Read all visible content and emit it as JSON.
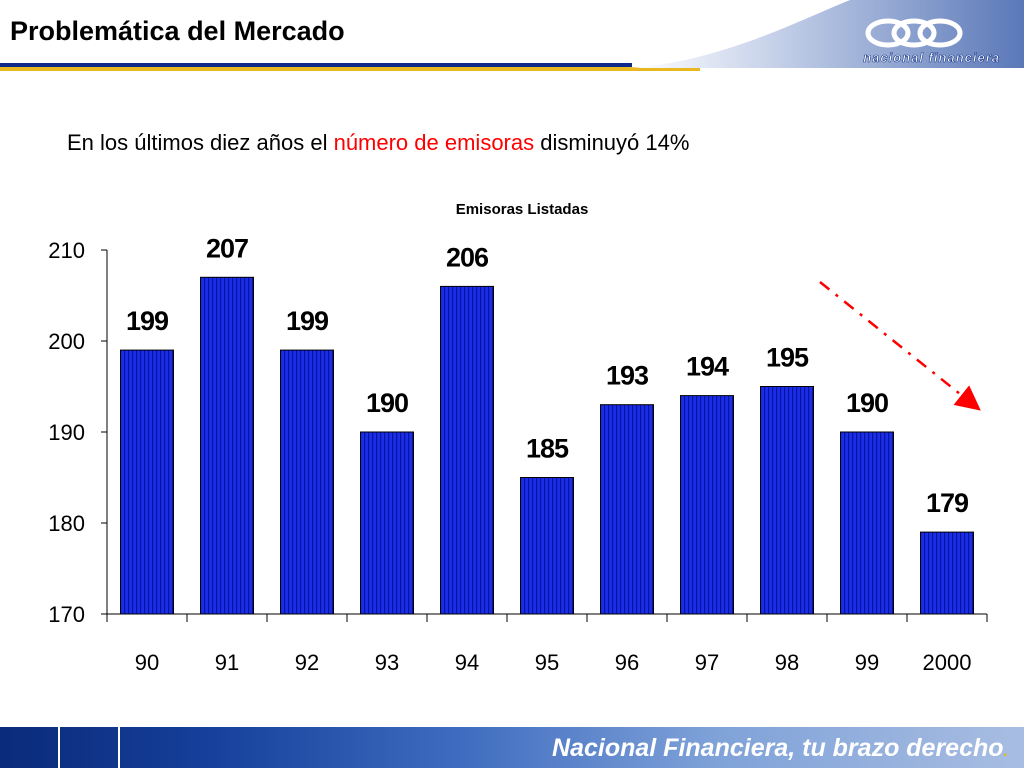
{
  "header": {
    "title": "Problemática del Mercado",
    "logo_text": "nacional financiera"
  },
  "subtitle": {
    "part1": "En los últimos diez años el ",
    "highlight": "número de emisoras",
    "part2": " disminuyó 14%"
  },
  "chart_data": {
    "type": "bar",
    "title": "Emisoras Listadas",
    "categories": [
      "90",
      "91",
      "92",
      "93",
      "94",
      "95",
      "96",
      "97",
      "98",
      "99",
      "2000"
    ],
    "values": [
      199,
      207,
      199,
      190,
      206,
      185,
      193,
      194,
      195,
      190,
      179
    ],
    "xlabel": "",
    "ylabel": "",
    "ylim": [
      170,
      210
    ],
    "yticks": [
      170,
      180,
      190,
      200,
      210
    ],
    "grid": false,
    "bar_color": "#1a2ee8",
    "trend_arrow_color": "#ff0000"
  },
  "footer": {
    "tagline": "Nacional Financiera, tu brazo derecho",
    "tagline_dot": "."
  },
  "colors": {
    "navy": "#0d2a8a",
    "gold": "#e8b820",
    "highlight": "#ff0000"
  }
}
